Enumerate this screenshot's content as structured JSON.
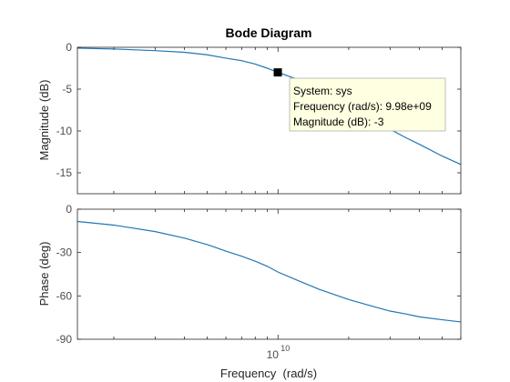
{
  "chart_data": {
    "type": "line",
    "title": "Bode Diagram",
    "xlabel": "Frequency  (rad/s)",
    "xscale": "log",
    "xlim": [
      1400000000.0,
      60000000000.0
    ],
    "x_major_tick": 10000000000.0,
    "x_major_tick_label": {
      "base": "10",
      "exp": "10"
    },
    "series_color": "#1f77b4",
    "magnitude": {
      "ylabel": "Magnitude (dB)",
      "ylim": [
        -17.5,
        0
      ],
      "yticks": [
        0,
        -5,
        -10,
        -15
      ],
      "series": [
        {
          "x": [
            1400000000.0,
            2000000000.0,
            3000000000.0,
            4000000000.0,
            5000000000.0,
            6000000000.0,
            7000000000.0,
            8000000000.0,
            9000000000.0,
            10000000000.0,
            12000000000.0,
            15000000000.0,
            20000000000.0,
            25000000000.0,
            30000000000.0,
            35000000000.0,
            40000000000.0,
            50000000000.0,
            60000000000.0
          ],
          "values": [
            -0.1,
            -0.2,
            -0.4,
            -0.6,
            -0.9,
            -1.3,
            -1.6,
            -2.0,
            -2.5,
            -3.0,
            -3.8,
            -5.0,
            -7.0,
            -8.6,
            -9.8,
            -10.8,
            -11.6,
            -13.0,
            -14.0
          ]
        }
      ]
    },
    "phase": {
      "ylabel": "Phase (deg)",
      "ylim": [
        -90,
        0
      ],
      "yticks": [
        0,
        -30,
        -60,
        -90
      ],
      "series": [
        {
          "x": [
            1400000000.0,
            2000000000.0,
            3000000000.0,
            4000000000.0,
            5000000000.0,
            6000000000.0,
            7000000000.0,
            8000000000.0,
            9000000000.0,
            10000000000.0,
            12000000000.0,
            15000000000.0,
            20000000000.0,
            25000000000.0,
            30000000000.0,
            35000000000.0,
            40000000000.0,
            50000000000.0,
            60000000000.0
          ],
          "values": [
            -8.5,
            -11.0,
            -15.5,
            -20.0,
            -24.5,
            -29.0,
            -32.5,
            -36.0,
            -39.5,
            -43.5,
            -49.0,
            -55.5,
            -62.5,
            -67.0,
            -70.5,
            -72.5,
            -74.5,
            -76.5,
            -78.0
          ]
        }
      ]
    },
    "datatip": {
      "x": 9980000000.0,
      "y": -3,
      "lines": [
        "System: sys",
        "Frequency (rad/s): 9.98e+09",
        "Magnitude (dB): -3"
      ]
    }
  }
}
